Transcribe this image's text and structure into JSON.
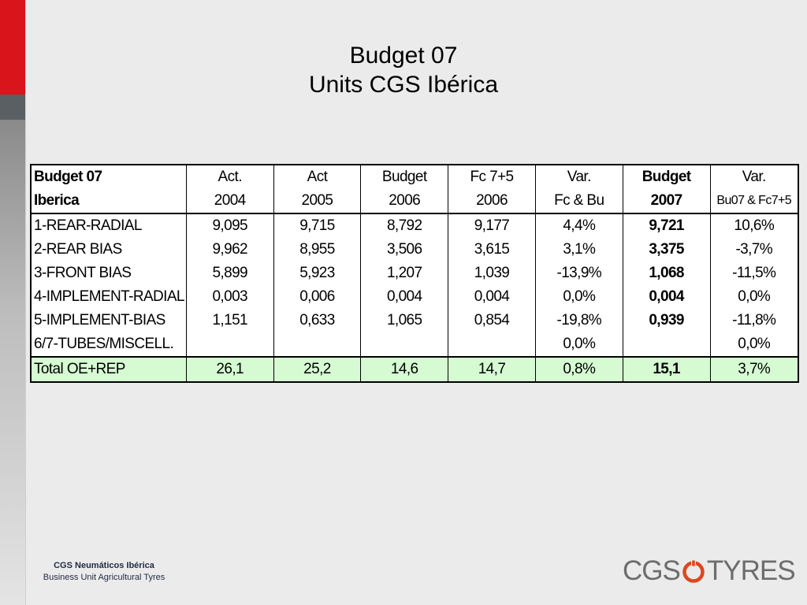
{
  "slide": {
    "title_line1": "Budget 07",
    "title_line2": "Units CGS Ibérica"
  },
  "table": {
    "header_row1": [
      "Budget 07",
      "Act.",
      "Act",
      "Budget",
      "Fc 7+5",
      "Var.",
      "Budget",
      "Var."
    ],
    "header_row2": [
      "Iberica",
      "2004",
      "2005",
      "2006",
      "2006",
      "Fc & Bu",
      "2007",
      "Bu07 & Fc7+5"
    ],
    "rows": [
      [
        "1-REAR-RADIAL",
        "9,095",
        "9,715",
        "8,792",
        "9,177",
        "4,4%",
        "9,721",
        "10,6%"
      ],
      [
        "2-REAR BIAS",
        "9,962",
        "8,955",
        "3,506",
        "3,615",
        "3,1%",
        "3,375",
        "-3,7%"
      ],
      [
        "3-FRONT BIAS",
        "5,899",
        "5,923",
        "1,207",
        "1,039",
        "-13,9%",
        "1,068",
        "-11,5%"
      ],
      [
        "4-IMPLEMENT-RADIAL",
        "0,003",
        "0,006",
        "0,004",
        "0,004",
        "0,0%",
        "0,004",
        "0,0%"
      ],
      [
        "5-IMPLEMENT-BIAS",
        "1,151",
        "0,633",
        "1,065",
        "0,854",
        "-19,8%",
        "0,939",
        "-11,8%"
      ],
      [
        "6/7-TUBES/MISCELL.",
        "",
        "",
        "",
        "",
        "0,0%",
        "",
        "0,0%"
      ]
    ],
    "total": [
      "Total OE+REP",
      "26,1",
      "25,2",
      "14,6",
      "14,7",
      "0,8%",
      "15,1",
      "3,7%"
    ]
  },
  "footer": {
    "company": "CGS Neumáticos Ibérica",
    "unit": "Business Unit Agricultural Tyres"
  },
  "logo": {
    "text_left": "CGS",
    "text_right": "TYRES",
    "icon": "tyre-ring-icon"
  },
  "colors": {
    "brand_red": "#d9141b",
    "total_row_bg": "#d6fbd3",
    "logo_grey": "#6d6d6d"
  }
}
